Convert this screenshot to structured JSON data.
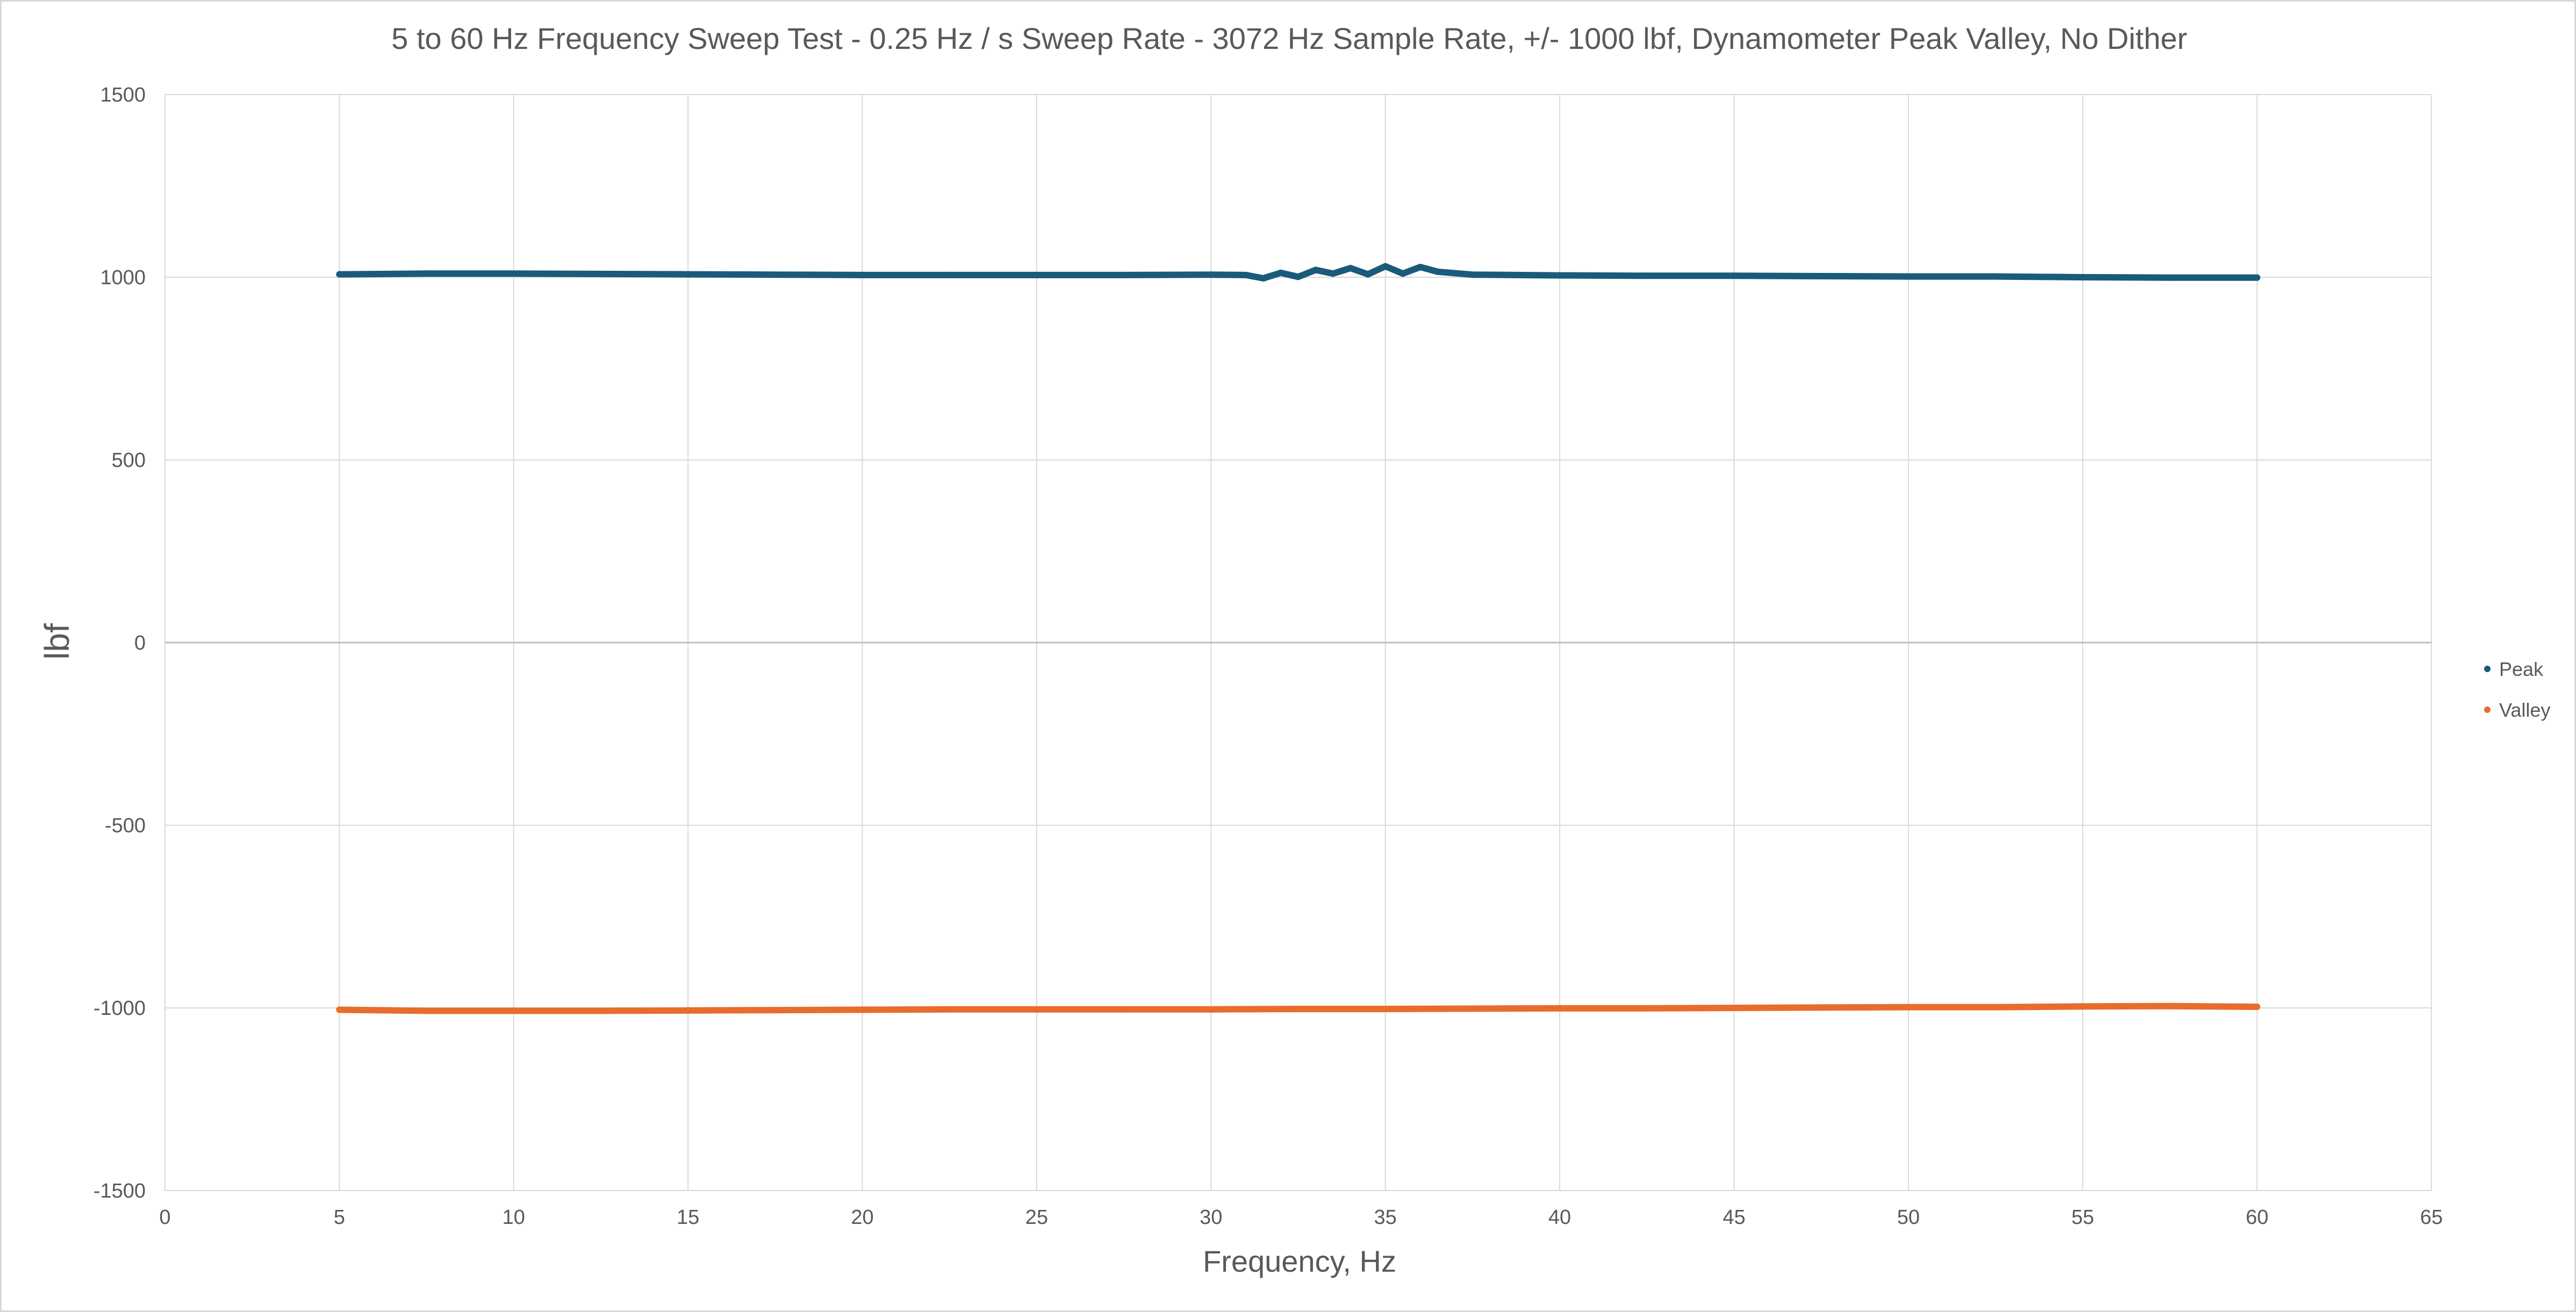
{
  "chart_data": {
    "type": "scatter",
    "title": "5 to 60 Hz Frequency Sweep Test - 0.25 Hz / s Sweep Rate  - 3072 Hz Sample Rate, +/- 1000 lbf, Dynamometer Peak Valley, No Dither",
    "xlabel": "Frequency, Hz",
    "ylabel": "lbf",
    "xlim": [
      0,
      65
    ],
    "ylim": [
      -1500,
      1500
    ],
    "x_ticks": [
      0,
      5,
      10,
      15,
      20,
      25,
      30,
      35,
      40,
      45,
      50,
      55,
      60,
      65
    ],
    "y_ticks": [
      1500,
      1000,
      500,
      0,
      -500,
      -1000,
      -1500
    ],
    "grid": true,
    "legend_position": "right",
    "series": [
      {
        "name": "Peak",
        "color": "#1a5a7a",
        "x": [
          5,
          7.5,
          10,
          12.5,
          15,
          17.5,
          20,
          22.5,
          25,
          27.5,
          30,
          31,
          31.5,
          32,
          32.5,
          33,
          33.5,
          34,
          34.5,
          35,
          35.5,
          36,
          36.5,
          37.5,
          40,
          42.5,
          45,
          47.5,
          50,
          52.5,
          55,
          57.5,
          60
        ],
        "y": [
          1008,
          1010,
          1010,
          1009,
          1008,
          1007,
          1006,
          1006,
          1006,
          1006,
          1007,
          1006,
          997,
          1012,
          1001,
          1020,
          1010,
          1025,
          1008,
          1030,
          1010,
          1028,
          1015,
          1007,
          1005,
          1004,
          1004,
          1003,
          1002,
          1002,
          1000,
          999,
          999
        ]
      },
      {
        "name": "Valley",
        "color": "#e86d2d",
        "x": [
          5,
          7.5,
          10,
          12.5,
          15,
          17.5,
          20,
          22.5,
          25,
          27.5,
          30,
          32.5,
          35,
          37.5,
          40,
          42.5,
          45,
          47.5,
          50,
          52.5,
          55,
          57.5,
          60
        ],
        "y": [
          -1005,
          -1008,
          -1008,
          -1008,
          -1007,
          -1006,
          -1005,
          -1004,
          -1004,
          -1004,
          -1004,
          -1003,
          -1003,
          -1002,
          -1001,
          -1001,
          -1000,
          -999,
          -998,
          -998,
          -996,
          -995,
          -997
        ]
      }
    ]
  }
}
